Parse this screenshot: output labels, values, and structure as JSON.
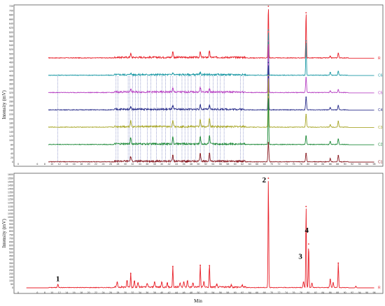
{
  "chart_data": [
    {
      "type": "line",
      "panel": "top",
      "ylabel": "Intensity (mV)",
      "xlim": [
        0,
        100
      ],
      "ylim": [
        0,
        720
      ],
      "y_ticks": [
        "0",
        "20",
        "40",
        "60",
        "80",
        "100",
        "120",
        "140",
        "160",
        "180",
        "200",
        "220",
        "240",
        "260",
        "280",
        "300",
        "320",
        "340",
        "360",
        "380",
        "400",
        "420",
        "440",
        "460",
        "480",
        "500",
        "520",
        "540",
        "560",
        "580",
        "600",
        "620",
        "640",
        "660",
        "680",
        "700",
        "720"
      ],
      "x_ticks": [
        "0",
        "6",
        "8",
        "10",
        "12",
        "14",
        "16",
        "18",
        "20",
        "22",
        "24",
        "26",
        "28",
        "30",
        "32",
        "34",
        "36",
        "38",
        "40",
        "42",
        "44",
        "46",
        "48",
        "50",
        "52",
        "54",
        "56",
        "58",
        "60",
        "62",
        "64",
        "66",
        "68",
        "70",
        "72",
        "74",
        "76",
        "78",
        "80",
        "82",
        "84",
        "86",
        "88",
        "90",
        "92",
        "94",
        "96",
        "98"
      ],
      "series": [
        {
          "name": "R",
          "color": "#e8212a",
          "baseline": 480,
          "peaks": [
            [
              31.5,
              18
            ],
            [
              43,
              28
            ],
            [
              50.5,
              25
            ],
            [
              53,
              28
            ],
            [
              69.1,
              240
            ],
            [
              79.4,
              210
            ],
            [
              86,
              8
            ],
            [
              88.2,
              22
            ]
          ]
        },
        {
          "name": "C6",
          "color": "#1e9aa6",
          "baseline": 400,
          "peaks": [
            [
              31.5,
              8
            ],
            [
              43,
              10
            ],
            [
              50.5,
              10
            ],
            [
              69.1,
              210
            ],
            [
              79.4,
              160
            ],
            [
              86,
              14
            ],
            [
              88.2,
              18
            ]
          ]
        },
        {
          "name": "C5",
          "color": "#b845c4",
          "baseline": 320,
          "peaks": [
            [
              31.5,
              15
            ],
            [
              43,
              18
            ],
            [
              50.5,
              22
            ],
            [
              53,
              15
            ],
            [
              69.1,
              240
            ],
            [
              79.4,
              70
            ],
            [
              86,
              8
            ],
            [
              88.2,
              14
            ]
          ]
        },
        {
          "name": "C4",
          "color": "#2b2f8c",
          "baseline": 240,
          "peaks": [
            [
              31.5,
              14
            ],
            [
              43,
              18
            ],
            [
              50.5,
              22
            ],
            [
              53,
              18
            ],
            [
              69.1,
              220
            ],
            [
              79.4,
              60
            ],
            [
              86,
              10
            ],
            [
              88.2,
              20
            ]
          ]
        },
        {
          "name": "C3",
          "color": "#a9a82c",
          "baseline": 160,
          "peaks": [
            [
              31.5,
              28
            ],
            [
              43,
              30
            ],
            [
              50.5,
              35
            ],
            [
              53,
              38
            ],
            [
              69.1,
              240
            ],
            [
              79.4,
              60
            ],
            [
              86,
              12
            ],
            [
              88.2,
              28
            ]
          ]
        },
        {
          "name": "C2",
          "color": "#1f8a3a",
          "baseline": 80,
          "peaks": [
            [
              31.5,
              30
            ],
            [
              43,
              32
            ],
            [
              50.5,
              35
            ],
            [
              53,
              38
            ],
            [
              69.1,
              230
            ],
            [
              79.4,
              40
            ],
            [
              86,
              14
            ],
            [
              88.2,
              25
            ]
          ]
        },
        {
          "name": "C1",
          "color": "#8a1d24",
          "baseline": 0,
          "peaks": [
            [
              31.5,
              22
            ],
            [
              43,
              30
            ],
            [
              50.5,
              35
            ],
            [
              53,
              40
            ],
            [
              69.1,
              90
            ],
            [
              79.4,
              40
            ],
            [
              86,
              15
            ],
            [
              88.2,
              30
            ]
          ]
        }
      ],
      "dashed_markers_x": [
        11.6,
        27.5,
        28,
        30.8,
        31.2,
        32,
        32.8,
        33.5,
        34.2,
        36,
        37,
        38.5,
        40,
        41,
        42.3,
        43,
        44,
        45.5,
        46.3,
        47.2,
        48,
        49.2,
        50.5,
        51.5,
        53,
        54,
        55.2,
        56,
        57,
        61.5,
        62.3
      ]
    },
    {
      "type": "line",
      "panel": "bottom",
      "xlabel": "Min",
      "ylabel": "Intensity (mV)",
      "xlim": [
        0,
        100
      ],
      "ylim": [
        0,
        1600
      ],
      "y_ticks": [
        "0",
        "50",
        "100",
        "150",
        "200",
        "250",
        "300",
        "350",
        "400",
        "450",
        "500",
        "550",
        "600",
        "650",
        "700",
        "750",
        "800",
        "850",
        "900",
        "950",
        "1000",
        "1050",
        "1100",
        "1150",
        "1200",
        "1250",
        "1300",
        "1350",
        "1400",
        "1450",
        "1500",
        "1550",
        "1600"
      ],
      "x_ticks": [
        "0",
        "6",
        "8",
        "10",
        "12",
        "14",
        "16",
        "18",
        "20",
        "22",
        "24",
        "26",
        "28",
        "30",
        "32",
        "34",
        "36",
        "38",
        "40",
        "42",
        "44",
        "46",
        "48",
        "50",
        "52",
        "54",
        "56",
        "58",
        "60",
        "62",
        "64",
        "66",
        "68",
        "70",
        "72",
        "74",
        "76",
        "78",
        "80",
        "82",
        "84",
        "86",
        "88",
        "90",
        "92",
        "94",
        "96",
        "98"
      ],
      "series": [
        {
          "name": "R",
          "color": "#e8212a",
          "peaks": [
            [
              11.6,
              45
            ],
            [
              27.8,
              70
            ],
            [
              30.5,
              90
            ],
            [
              31.5,
              200
            ],
            [
              32.5,
              90
            ],
            [
              33.5,
              60
            ],
            [
              36,
              55
            ],
            [
              38,
              80
            ],
            [
              40,
              75
            ],
            [
              41.5,
              60
            ],
            [
              43,
              300
            ],
            [
              45,
              60
            ],
            [
              46,
              80
            ],
            [
              47,
              95
            ],
            [
              48.5,
              60
            ],
            [
              50.5,
              320
            ],
            [
              51.5,
              80
            ],
            [
              53,
              315
            ],
            [
              55,
              40
            ],
            [
              59,
              30
            ],
            [
              62,
              30
            ],
            [
              69.1,
              1550
            ],
            [
              78.7,
              80
            ],
            [
              79.4,
              1150
            ],
            [
              80.1,
              620
            ],
            [
              81,
              60
            ],
            [
              86,
              120
            ],
            [
              86.8,
              70
            ],
            [
              88.2,
              350
            ],
            [
              93,
              20
            ]
          ]
        }
      ],
      "peak_labels": [
        {
          "label": "1",
          "x": 11.6
        },
        {
          "label": "2",
          "x": 69.1
        },
        {
          "label": "3",
          "x": 79.0
        },
        {
          "label": "4",
          "x": 79.4
        }
      ]
    }
  ]
}
